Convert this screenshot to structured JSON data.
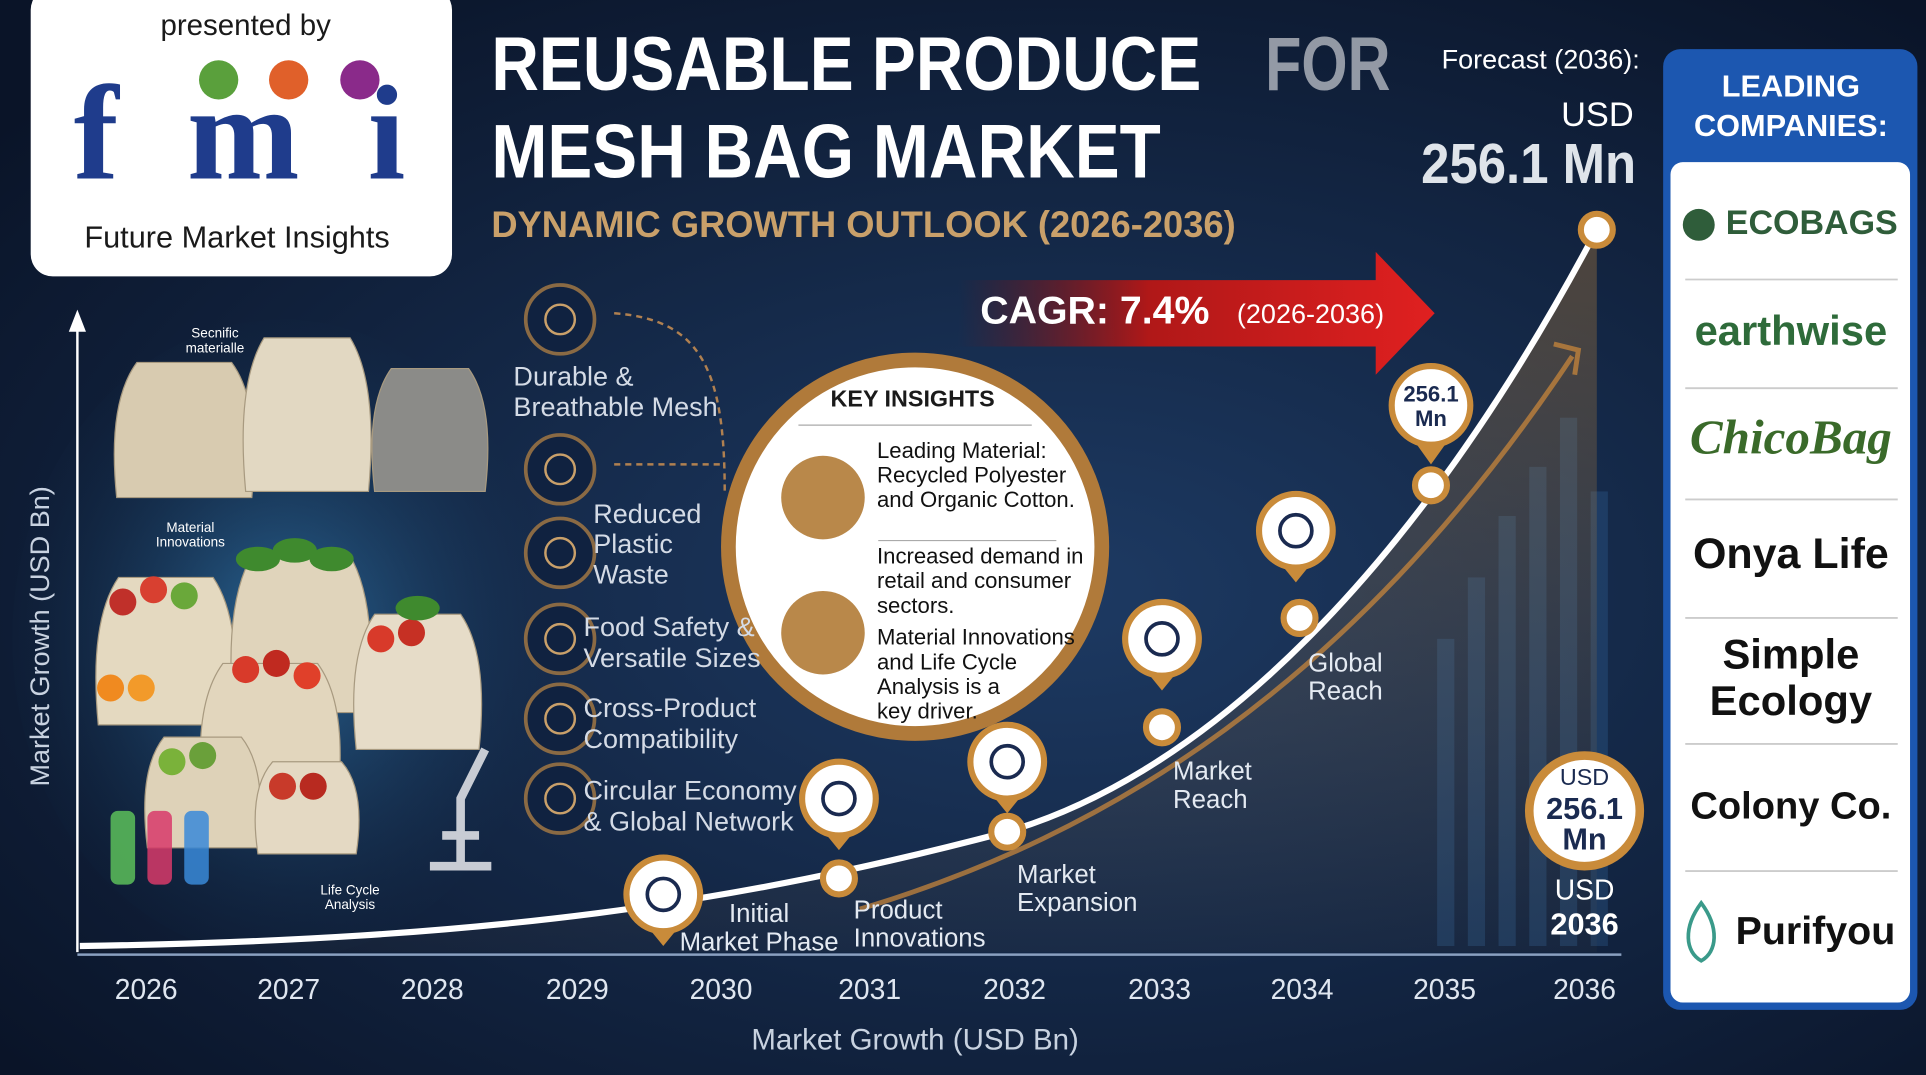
{
  "logo": {
    "presented_by": "presented by",
    "brand": "fmi",
    "name": "Future Market Insights"
  },
  "header": {
    "title_lines": [
      "REUSABLE PRODUCE",
      "MESH BAG MARKET"
    ],
    "title_faded": "FOR",
    "subtitle": "DYNAMIC GROWTH OUTLOOK (2026-2036)"
  },
  "forecast": {
    "label": "Forecast (2036):",
    "unit": "USD",
    "value": "256.1 Mn"
  },
  "cagr": {
    "label": "CAGR: 7.4%",
    "period": "(2026-2036)"
  },
  "image_labels": [
    [
      "Secnific",
      "materialle"
    ],
    [
      "Material",
      "Innovations"
    ],
    [
      "Life Cycle",
      "Analysis"
    ]
  ],
  "features": [
    [
      "Durable &",
      "Breathable Mesh"
    ],
    [
      "Reduced",
      "Plastic",
      "Waste"
    ],
    [
      "Food Safety &",
      "Versatile Sizes"
    ],
    [
      "Cross-Product",
      "Compatibility"
    ],
    [
      "Circular Economy",
      "& Global Network"
    ]
  ],
  "key_insights": {
    "title": "KEY INSIGHTS",
    "items": [
      [
        "Leading Material:",
        "Recycled Polyester",
        "and Organic Cotton."
      ],
      [
        "Increased demand in",
        "retail and consumer",
        "sectors."
      ],
      [
        "Material Innovations",
        "and Life Cycle",
        "Analysis is a",
        "key driver."
      ]
    ]
  },
  "milestones": [
    [
      "Initial",
      "Market Phase"
    ],
    [
      "Product",
      "Innovations"
    ],
    [
      "Market",
      "Expansion"
    ],
    [
      "Market",
      "Reach"
    ],
    [
      "Global",
      "Reach"
    ]
  ],
  "bubble": [
    "256.1",
    "Mn"
  ],
  "end_badge": [
    "USD",
    "256.1",
    "Mn"
  ],
  "end_label": [
    "USD",
    "2036"
  ],
  "axis": {
    "y_label": "Market Growth (USD Bn)",
    "x_label": "Market Growth (USD Bn)",
    "years": [
      "2026",
      "2027",
      "2028",
      "2029",
      "2030",
      "2031",
      "2032",
      "2033",
      "2034",
      "2035",
      "2036"
    ]
  },
  "companies": {
    "title_lines": [
      "LEADING",
      "COMPANIES:"
    ],
    "names": [
      "ECOBAGS",
      "earthwise",
      "ChicoBag",
      "Onya Life",
      "Simple Ecology",
      "Colony Co.",
      "Purifyou"
    ]
  }
}
